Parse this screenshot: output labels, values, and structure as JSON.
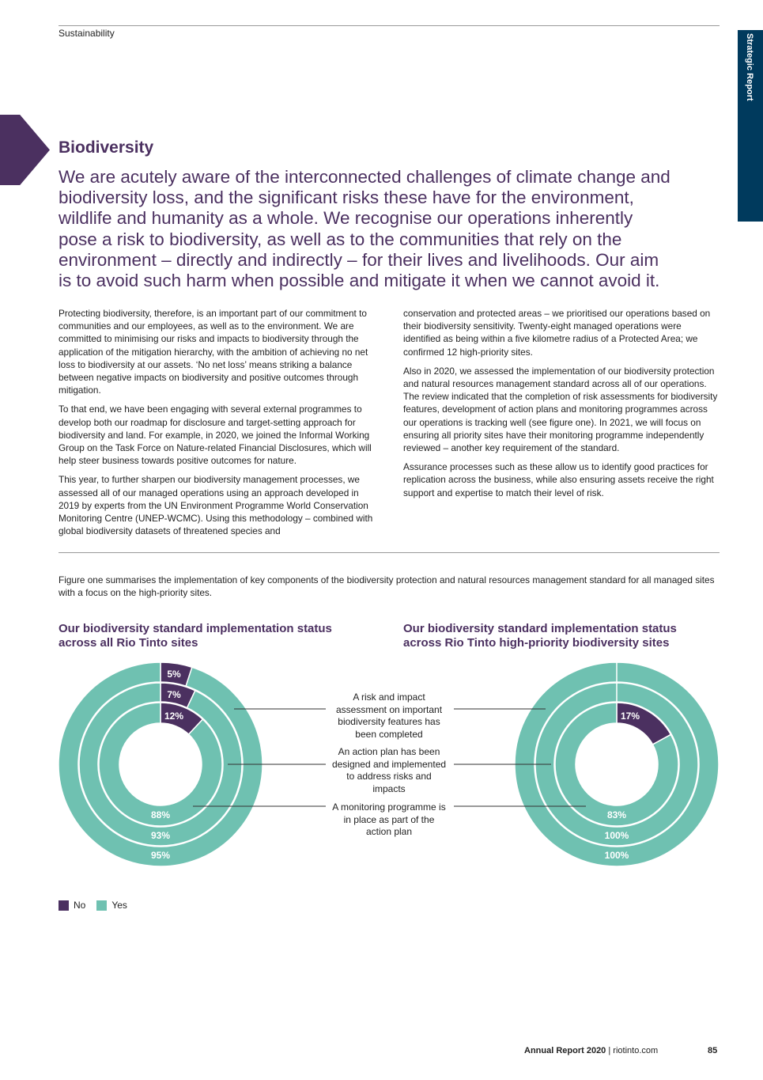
{
  "header": {
    "section": "Sustainability",
    "side_tab": "Strategic Report"
  },
  "title": "Biodiversity",
  "intro": "We are acutely aware of the interconnected challenges of climate change and biodiversity loss, and the significant risks these have for the environment, wildlife and humanity as a whole. We recognise our operations inherently pose a risk to biodiversity, as well as to the communities that rely on the environment – directly and indirectly – for their lives and livelihoods. Our aim is to avoid such harm when possible and mitigate it when we cannot avoid it.",
  "left_col": [
    "Protecting biodiversity, therefore, is an important part of our commitment to communities and our employees, as well as to the environment. We are committed to minimising our risks and impacts to biodiversity through the application of the mitigation hierarchy, with the ambition of achieving no net loss to biodiversity at our assets. ‘No net loss’ means striking a balance between negative impacts on biodiversity and positive outcomes through mitigation.",
    "To that end, we have been engaging with several external programmes to develop both our roadmap for disclosure and target-setting approach for biodiversity and land. For example, in 2020, we joined the Informal Working Group on the Task Force on Nature-related Financial Disclosures, which will help steer business towards positive outcomes for nature.",
    "This year, to further sharpen our biodiversity management processes, we assessed all of our managed operations using an approach developed in 2019 by experts from the UN Environment Programme World Conservation Monitoring Centre (UNEP-WCMC). Using this methodology – combined with global biodiversity datasets of threatened species and"
  ],
  "right_col": [
    "conservation and protected areas – we prioritised our operations based on their biodiversity sensitivity. Twenty-eight managed operations were identified as being within a five kilometre radius of a Protected Area; we confirmed 12 high-priority sites.",
    "Also in 2020, we assessed the implementation of our biodiversity protection and natural resources management standard across all of our operations. The review indicated that the completion of risk assessments for biodiversity features, development of action plans and monitoring programmes across our operations is tracking well (see figure one). In 2021, we will focus on ensuring all priority sites have their monitoring programme independently reviewed – another key requirement of the standard.",
    "Assurance processes such as these allow us to identify good practices for replication across the business, while also ensuring assets receive the right support and expertise to match their level of risk."
  ],
  "figure_text": "Figure one summarises the implementation of key components of the biodiversity protection and natural resources management standard for all managed sites with a focus on the high-priority sites.",
  "callouts": [
    "A risk and impact assessment on important biodiversity features has been completed",
    "An action plan has been designed and implemented to address risks and impacts",
    "A monitoring programme is in place as part of the action plan"
  ],
  "colors": {
    "no": "#4b3060",
    "yes": "#6fc1b1",
    "navy": "#003a5d"
  },
  "chart_data": [
    {
      "type": "pie",
      "title": "Our biodiversity standard implementation status across all Rio Tinto sites",
      "rings": [
        {
          "name": "A risk and impact assessment on important biodiversity features has been completed",
          "no": 5,
          "yes": 95,
          "no_label": "5%",
          "yes_label": "95%"
        },
        {
          "name": "An action plan has been designed and implemented to address risks and impacts",
          "no": 7,
          "yes": 93,
          "no_label": "7%",
          "yes_label": "93%"
        },
        {
          "name": "A monitoring programme is in place as part of the action plan",
          "no": 12,
          "yes": 88,
          "no_label": "12%",
          "yes_label": "88%"
        }
      ],
      "legend": [
        "No",
        "Yes"
      ]
    },
    {
      "type": "pie",
      "title": "Our biodiversity standard implementation status across Rio Tinto high-priority biodiversity sites",
      "rings": [
        {
          "name": "A risk and impact assessment on important biodiversity features has been completed",
          "no": 0,
          "yes": 100,
          "no_label": "",
          "yes_label": "100%"
        },
        {
          "name": "An action plan has been designed and implemented to address risks and impacts",
          "no": 0,
          "yes": 100,
          "no_label": "",
          "yes_label": "100%"
        },
        {
          "name": "A monitoring programme is in place as part of the action plan",
          "no": 17,
          "yes": 83,
          "no_label": "17%",
          "yes_label": "83%"
        }
      ],
      "legend": [
        "No",
        "Yes"
      ]
    }
  ],
  "legend": {
    "no": "No",
    "yes": "Yes"
  },
  "footer": {
    "report": "Annual Report 2020",
    "sep": "|",
    "site": "riotinto.com",
    "page": "85"
  }
}
